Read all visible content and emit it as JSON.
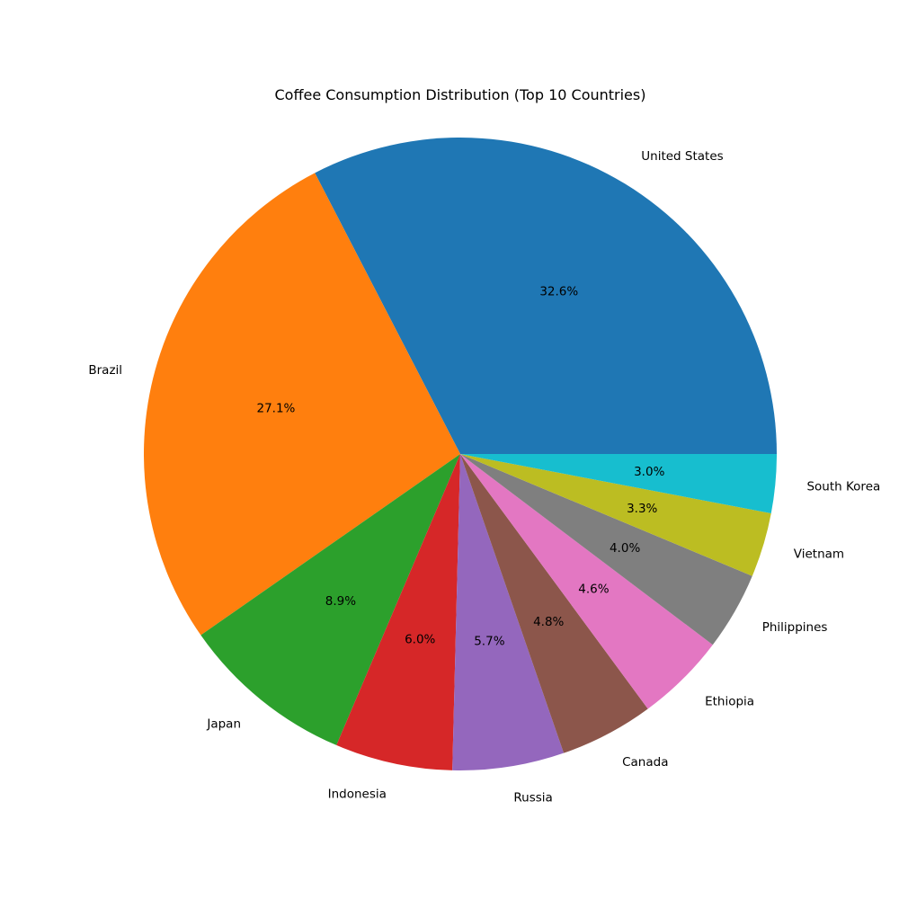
{
  "chart_data": {
    "type": "pie",
    "title": "Coffee Consumption Distribution (Top 10 Countries)",
    "start_angle_deg": 0,
    "direction": "counterclockwise",
    "slices": [
      {
        "label": "United States",
        "percent": 32.6,
        "percent_label": "32.6%",
        "color": "#1f77b4"
      },
      {
        "label": "Brazil",
        "percent": 27.1,
        "percent_label": "27.1%",
        "color": "#ff7f0e"
      },
      {
        "label": "Japan",
        "percent": 8.9,
        "percent_label": "8.9%",
        "color": "#2ca02c"
      },
      {
        "label": "Indonesia",
        "percent": 6.0,
        "percent_label": "6.0%",
        "color": "#d62728"
      },
      {
        "label": "Russia",
        "percent": 5.7,
        "percent_label": "5.7%",
        "color": "#9467bd"
      },
      {
        "label": "Canada",
        "percent": 4.8,
        "percent_label": "4.8%",
        "color": "#8c564b"
      },
      {
        "label": "Ethiopia",
        "percent": 4.6,
        "percent_label": "4.6%",
        "color": "#e377c2"
      },
      {
        "label": "Philippines",
        "percent": 4.0,
        "percent_label": "4.0%",
        "color": "#7f7f7f"
      },
      {
        "label": "Vietnam",
        "percent": 3.3,
        "percent_label": "3.3%",
        "color": "#bcbd22"
      },
      {
        "label": "South Korea",
        "percent": 3.0,
        "percent_label": "3.0%",
        "color": "#17becf"
      }
    ]
  }
}
